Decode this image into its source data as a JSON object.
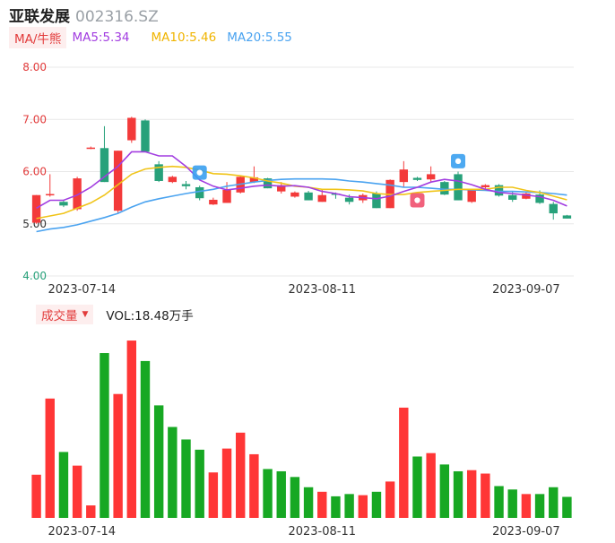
{
  "header": {
    "name": "亚联发展",
    "code": "002316.SZ"
  },
  "legend": {
    "ma_label": "MA/牛熊",
    "ma5": "MA5:5.34",
    "ma10": "MA10:5.46",
    "ma20": "MA20:5.55"
  },
  "volume_header": {
    "label": "成交量",
    "text": "VOL:18.48万手"
  },
  "colors": {
    "up": "#f33a3a",
    "down": "#27a17a",
    "vol_up": "#ff3636",
    "vol_down": "#17a823",
    "ma5": "#a23de0",
    "ma10": "#f0c419",
    "ma20": "#4aa3f0",
    "grid": "#e8e8e8"
  },
  "chart_data": [
    {
      "type": "candlestick",
      "ylim": [
        4.0,
        8.0
      ],
      "yticks": [
        "8.00",
        "7.00",
        "6.00",
        "5.00",
        "4.00"
      ],
      "xticks": [
        "2023-07-14",
        "2023-08-11",
        "2023-09-07"
      ],
      "candles": [
        {
          "o": 5.02,
          "h": 5.55,
          "l": 5.0,
          "c": 5.55
        },
        {
          "o": 5.55,
          "h": 5.95,
          "l": 5.52,
          "c": 5.57
        },
        {
          "o": 5.42,
          "h": 5.45,
          "l": 5.32,
          "c": 5.35
        },
        {
          "o": 5.28,
          "h": 5.9,
          "l": 5.25,
          "c": 5.87
        },
        {
          "o": 6.45,
          "h": 6.48,
          "l": 6.43,
          "c": 6.46
        },
        {
          "o": 6.45,
          "h": 6.87,
          "l": 5.8,
          "c": 5.8
        },
        {
          "o": 5.25,
          "h": 6.4,
          "l": 5.2,
          "c": 6.4
        },
        {
          "o": 6.6,
          "h": 7.05,
          "l": 6.55,
          "c": 7.03
        },
        {
          "o": 6.98,
          "h": 7.0,
          "l": 6.38,
          "c": 6.38
        },
        {
          "o": 6.14,
          "h": 6.2,
          "l": 5.8,
          "c": 5.82
        },
        {
          "o": 5.8,
          "h": 5.92,
          "l": 5.78,
          "c": 5.9
        },
        {
          "o": 5.76,
          "h": 5.82,
          "l": 5.66,
          "c": 5.72
        },
        {
          "o": 5.7,
          "h": 5.73,
          "l": 5.45,
          "c": 5.49
        },
        {
          "o": 5.37,
          "h": 5.5,
          "l": 5.36,
          "c": 5.46
        },
        {
          "o": 5.4,
          "h": 5.8,
          "l": 5.4,
          "c": 5.65
        },
        {
          "o": 5.6,
          "h": 5.93,
          "l": 5.58,
          "c": 5.9
        },
        {
          "o": 5.8,
          "h": 6.1,
          "l": 5.78,
          "c": 5.89
        },
        {
          "o": 5.87,
          "h": 5.88,
          "l": 5.68,
          "c": 5.68
        },
        {
          "o": 5.62,
          "h": 5.8,
          "l": 5.58,
          "c": 5.74
        },
        {
          "o": 5.52,
          "h": 5.62,
          "l": 5.5,
          "c": 5.6
        },
        {
          "o": 5.6,
          "h": 5.63,
          "l": 5.45,
          "c": 5.45
        },
        {
          "o": 5.42,
          "h": 5.65,
          "l": 5.42,
          "c": 5.55
        },
        {
          "o": 5.58,
          "h": 5.6,
          "l": 5.48,
          "c": 5.56
        },
        {
          "o": 5.5,
          "h": 5.56,
          "l": 5.37,
          "c": 5.42
        },
        {
          "o": 5.45,
          "h": 5.58,
          "l": 5.4,
          "c": 5.55
        },
        {
          "o": 5.58,
          "h": 5.62,
          "l": 5.3,
          "c": 5.3
        },
        {
          "o": 5.3,
          "h": 5.85,
          "l": 5.3,
          "c": 5.84
        },
        {
          "o": 5.8,
          "h": 6.2,
          "l": 5.7,
          "c": 6.04
        },
        {
          "o": 5.88,
          "h": 5.9,
          "l": 5.82,
          "c": 5.84
        },
        {
          "o": 5.85,
          "h": 6.1,
          "l": 5.8,
          "c": 5.95
        },
        {
          "o": 5.8,
          "h": 5.82,
          "l": 5.55,
          "c": 5.56
        },
        {
          "o": 5.95,
          "h": 6.0,
          "l": 5.45,
          "c": 5.45
        },
        {
          "o": 5.42,
          "h": 5.66,
          "l": 5.4,
          "c": 5.66
        },
        {
          "o": 5.7,
          "h": 5.76,
          "l": 5.64,
          "c": 5.74
        },
        {
          "o": 5.74,
          "h": 5.76,
          "l": 5.52,
          "c": 5.54
        },
        {
          "o": 5.55,
          "h": 5.62,
          "l": 5.42,
          "c": 5.46
        },
        {
          "o": 5.48,
          "h": 5.62,
          "l": 5.47,
          "c": 5.58
        },
        {
          "o": 5.56,
          "h": 5.64,
          "l": 5.38,
          "c": 5.4
        },
        {
          "o": 5.38,
          "h": 5.42,
          "l": 5.08,
          "c": 5.2
        },
        {
          "o": 5.16,
          "h": 5.17,
          "l": 5.1,
          "c": 5.1
        }
      ],
      "ma5": [
        5.3,
        5.45,
        5.45,
        5.55,
        5.7,
        5.9,
        6.1,
        6.38,
        6.38,
        6.3,
        6.3,
        6.1,
        5.84,
        5.72,
        5.65,
        5.68,
        5.72,
        5.74,
        5.72,
        5.73,
        5.7,
        5.62,
        5.58,
        5.52,
        5.5,
        5.48,
        5.53,
        5.62,
        5.7,
        5.8,
        5.85,
        5.82,
        5.75,
        5.66,
        5.6,
        5.58,
        5.55,
        5.52,
        5.45,
        5.34
      ],
      "ma10": [
        5.1,
        5.15,
        5.2,
        5.3,
        5.4,
        5.55,
        5.75,
        5.95,
        6.05,
        6.08,
        6.1,
        6.08,
        6.03,
        5.96,
        5.95,
        5.92,
        5.88,
        5.82,
        5.78,
        5.72,
        5.7,
        5.66,
        5.66,
        5.65,
        5.63,
        5.58,
        5.56,
        5.56,
        5.6,
        5.62,
        5.64,
        5.66,
        5.66,
        5.66,
        5.7,
        5.7,
        5.64,
        5.6,
        5.53,
        5.46
      ],
      "ma20": [
        4.85,
        4.9,
        4.93,
        4.98,
        5.05,
        5.12,
        5.2,
        5.32,
        5.42,
        5.48,
        5.53,
        5.58,
        5.62,
        5.66,
        5.72,
        5.76,
        5.8,
        5.83,
        5.85,
        5.86,
        5.86,
        5.86,
        5.85,
        5.82,
        5.8,
        5.77,
        5.74,
        5.7,
        5.7,
        5.68,
        5.66,
        5.66,
        5.65,
        5.64,
        5.62,
        5.62,
        5.61,
        5.6,
        5.58,
        5.55
      ]
    },
    {
      "type": "bar",
      "series": [
        {
          "values": [
            3.8,
            10.5,
            5.8,
            4.6,
            1.1,
            14.5,
            10.9,
            15.6,
            13.8,
            9.9,
            8.0,
            6.9,
            6.0,
            4.0,
            6.1,
            7.5,
            5.6,
            4.3,
            4.1,
            3.6,
            2.7,
            2.3,
            1.9,
            2.1,
            2.0,
            2.3,
            3.2,
            9.7,
            5.4,
            5.7,
            4.7,
            4.1,
            4.2,
            3.9,
            2.8,
            2.5,
            2.1,
            2.1,
            2.7,
            1.85
          ]
        }
      ],
      "up": [
        true,
        true,
        false,
        true,
        true,
        false,
        true,
        true,
        false,
        false,
        false,
        false,
        false,
        true,
        true,
        true,
        true,
        false,
        false,
        false,
        false,
        true,
        false,
        false,
        true,
        false,
        true,
        true,
        false,
        true,
        false,
        false,
        true,
        true,
        false,
        false,
        true,
        false,
        false,
        false
      ]
    }
  ]
}
